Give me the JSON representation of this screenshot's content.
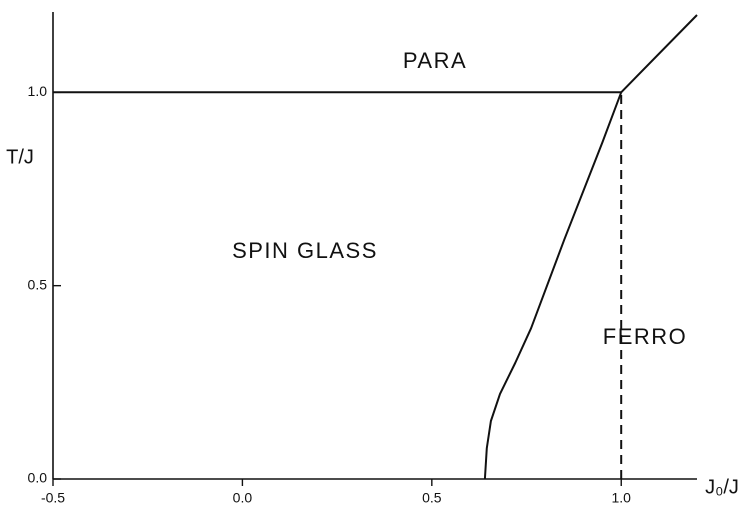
{
  "chart_data": {
    "type": "line",
    "x_label": "J₀/J",
    "y_label": "T/J",
    "annotations": [
      "PARA",
      "SPIN GLASS",
      "FERRO"
    ],
    "xlim": [
      -0.5,
      1.2
    ],
    "ylim": [
      0,
      1.2
    ],
    "xticks": [
      -0.5,
      {
        "value": 0,
        "label": "0.0"
      },
      0.5,
      {
        "value": 1,
        "label": "1.0"
      }
    ],
    "yticks": [
      {
        "value": 0,
        "label": "0.0"
      },
      0.5,
      {
        "value": 1,
        "label": "1.0"
      }
    ],
    "grid": false,
    "series": [
      {
        "color": "#111111",
        "linestyle": "solid",
        "x": [
          -0.5,
          1.0
        ],
        "values": [
          1.0,
          1.0
        ]
      },
      {
        "color": "#111111",
        "linestyle": "solid",
        "x": [
          0.64,
          0.645,
          0.656,
          0.68,
          0.72,
          0.762,
          0.85,
          0.95,
          1.0
        ],
        "values": [
          0,
          0.08,
          0.15,
          0.22,
          0.3,
          0.39,
          0.62,
          0.87,
          1.0
        ]
      },
      {
        "color": "#111111",
        "linestyle": "solid",
        "x": [
          1.0,
          1.2
        ],
        "values": [
          1.0,
          1.2
        ]
      },
      {
        "color": "#111111",
        "linestyle": "dashed",
        "x": [
          1.0,
          1.0
        ],
        "values": [
          0,
          1.0
        ]
      }
    ]
  }
}
